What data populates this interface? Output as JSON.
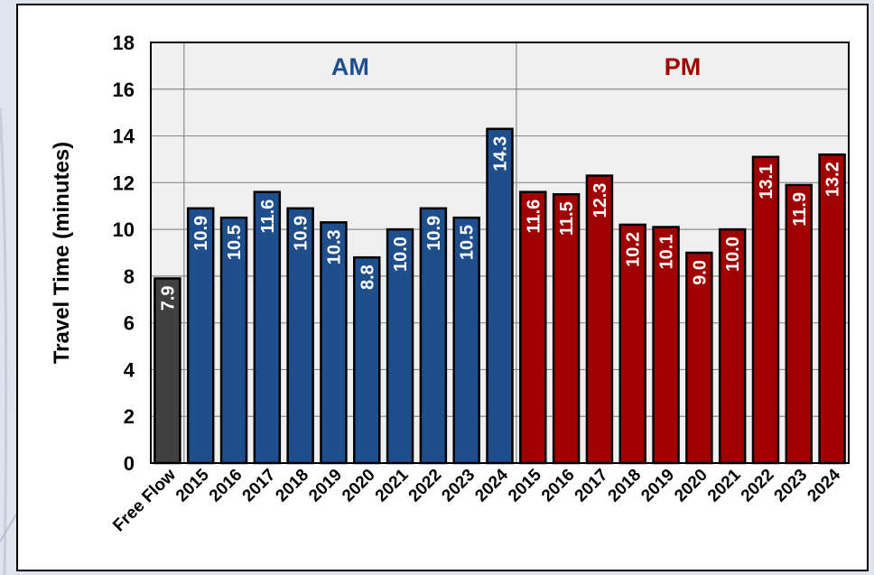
{
  "chart_data": {
    "type": "bar",
    "ylabel": "Travel Time (minutes)",
    "xlabel": "",
    "ylim": [
      0,
      18
    ],
    "yticks": [
      0,
      2,
      4,
      6,
      8,
      10,
      12,
      14,
      16,
      18
    ],
    "grid": true,
    "groups": [
      {
        "label": "",
        "color": "#404040",
        "categories": [
          "Free Flow"
        ],
        "values": [
          7.9
        ],
        "value_labels": [
          "7.9"
        ]
      },
      {
        "label": "AM",
        "color": "#1f4e8c",
        "label_color": "#1f4e8c",
        "categories": [
          "2015",
          "2016",
          "2017",
          "2018",
          "2019",
          "2020",
          "2021",
          "2022",
          "2023",
          "2024"
        ],
        "values": [
          10.9,
          10.5,
          11.6,
          10.9,
          10.3,
          8.8,
          10.0,
          10.9,
          10.5,
          14.3
        ],
        "value_labels": [
          "10.9",
          "10.5",
          "11.6",
          "10.9",
          "10.3",
          "8.8",
          "10.0",
          "10.9",
          "10.5",
          "14.3"
        ]
      },
      {
        "label": "PM",
        "color": "#a00000",
        "label_color": "#a00000",
        "categories": [
          "2015",
          "2016",
          "2017",
          "2018",
          "2019",
          "2020",
          "2021",
          "2022",
          "2023",
          "2024"
        ],
        "values": [
          11.6,
          11.5,
          12.3,
          10.2,
          10.1,
          9.0,
          10.0,
          13.1,
          11.9,
          13.2
        ],
        "value_labels": [
          "11.6",
          "11.5",
          "12.3",
          "10.2",
          "10.1",
          "9.0",
          "10.0",
          "13.1",
          "11.9",
          "13.2"
        ]
      }
    ],
    "plot_background": "#efefef"
  }
}
